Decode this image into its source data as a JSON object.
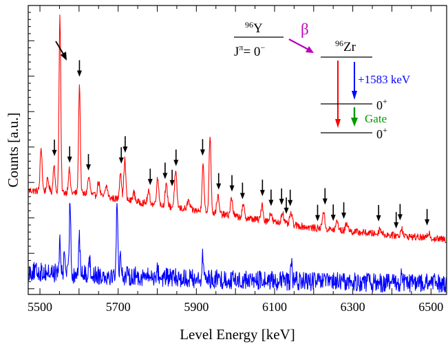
{
  "chart_data": {
    "type": "line",
    "xlabel": "Level Energy [keV]",
    "ylabel": "Counts [a.u.]",
    "xlim": [
      5470,
      6540
    ],
    "ylim": [
      0,
      100
    ],
    "xticks": [
      5500,
      5700,
      5900,
      6100,
      6300,
      6500
    ],
    "grid": false,
    "series": [
      {
        "color": "#ff0000",
        "baseline": {
          "x": [
            5470,
            5600,
            5800,
            6000,
            6200,
            6400,
            6540
          ],
          "y": [
            36,
            35,
            31,
            27,
            23,
            20.5,
            19
          ]
        },
        "peaks": [
          {
            "x": 5503,
            "h": 15,
            "w": 2.5
          },
          {
            "x": 5520,
            "h": 4,
            "w": 3
          },
          {
            "x": 5536,
            "h": 10,
            "w": 2.2
          },
          {
            "x": 5551,
            "h": 61,
            "w": 2.2
          },
          {
            "x": 5575,
            "h": 8,
            "w": 2.5
          },
          {
            "x": 5601,
            "h": 38,
            "w": 2.2
          },
          {
            "x": 5625,
            "h": 6,
            "w": 3
          },
          {
            "x": 5650,
            "h": 5,
            "w": 3
          },
          {
            "x": 5670,
            "h": 4,
            "w": 3
          },
          {
            "x": 5706,
            "h": 10,
            "w": 2.5
          },
          {
            "x": 5717,
            "h": 14,
            "w": 2.5
          },
          {
            "x": 5740,
            "h": 3,
            "w": 3
          },
          {
            "x": 5778,
            "h": 4,
            "w": 3
          },
          {
            "x": 5801,
            "h": 9,
            "w": 3
          },
          {
            "x": 5823,
            "h": 7,
            "w": 3
          },
          {
            "x": 5847,
            "h": 12,
            "w": 3
          },
          {
            "x": 5880,
            "h": 3,
            "w": 3
          },
          {
            "x": 5917,
            "h": 17,
            "w": 2.5
          },
          {
            "x": 5935,
            "h": 27,
            "w": 2.5
          },
          {
            "x": 5955,
            "h": 6,
            "w": 3
          },
          {
            "x": 5990,
            "h": 6,
            "w": 3
          },
          {
            "x": 6020,
            "h": 4,
            "w": 3
          },
          {
            "x": 6068,
            "h": 6,
            "w": 2.5
          },
          {
            "x": 6090,
            "h": 3,
            "w": 3
          },
          {
            "x": 6120,
            "h": 4,
            "w": 3
          },
          {
            "x": 6142,
            "h": 4,
            "w": 3
          },
          {
            "x": 6225,
            "h": 6,
            "w": 3
          },
          {
            "x": 6260,
            "h": 3,
            "w": 3
          },
          {
            "x": 6285,
            "h": 3,
            "w": 3
          },
          {
            "x": 6370,
            "h": 2,
            "w": 3
          },
          {
            "x": 6425,
            "h": 3,
            "w": 2.5
          },
          {
            "x": 6495,
            "h": 2,
            "w": 3
          }
        ],
        "noise": 1.2
      },
      {
        "color": "#0000ff",
        "baseline": {
          "x": [
            5470,
            5600,
            5800,
            6000,
            6200,
            6400,
            6540
          ],
          "y": [
            8,
            7,
            6,
            5,
            4.5,
            4,
            4
          ]
        },
        "peaks": [
          {
            "x": 5551,
            "h": 10,
            "w": 2
          },
          {
            "x": 5563,
            "h": 7,
            "w": 2
          },
          {
            "x": 5577,
            "h": 26,
            "w": 1.8
          },
          {
            "x": 5601,
            "h": 12,
            "w": 2
          },
          {
            "x": 5626,
            "h": 6,
            "w": 2
          },
          {
            "x": 5697,
            "h": 27,
            "w": 1.8
          },
          {
            "x": 5706,
            "h": 8,
            "w": 2
          },
          {
            "x": 5800,
            "h": 3,
            "w": 2
          },
          {
            "x": 5917,
            "h": 8,
            "w": 2
          },
          {
            "x": 6143,
            "h": 7,
            "w": 1.5
          },
          {
            "x": 6425,
            "h": 4,
            "w": 1.5
          }
        ],
        "noise": 3.3
      }
    ],
    "arrows_at": [
      5537,
      5576,
      5601,
      5624,
      5708,
      5718,
      5782,
      5820,
      5838,
      5848,
      5916,
      5957,
      5991,
      6018,
      6069,
      6091,
      6118,
      6130,
      6140,
      6210,
      6229,
      6250,
      6277,
      6366,
      6411,
      6421,
      6490
    ],
    "annotations": {
      "parent": {
        "mass": "96",
        "symbol": "Y",
        "spin": "J",
        "spin_sup": "π",
        "spin_value": "= 0",
        "spin_parity": "−"
      },
      "decay_label": "β",
      "daughter": {
        "mass": "96",
        "symbol": "Zr"
      },
      "transition_energy": "+1583 keV",
      "gate_label": "Gate",
      "level_upper": {
        "value": "0",
        "parity": "+"
      },
      "level_lower": {
        "value": "0",
        "parity": "+"
      }
    },
    "colors": {
      "red": "#ff0000",
      "blue": "#0000ff",
      "gate": "#009900",
      "beta": "#bb00bb"
    }
  }
}
